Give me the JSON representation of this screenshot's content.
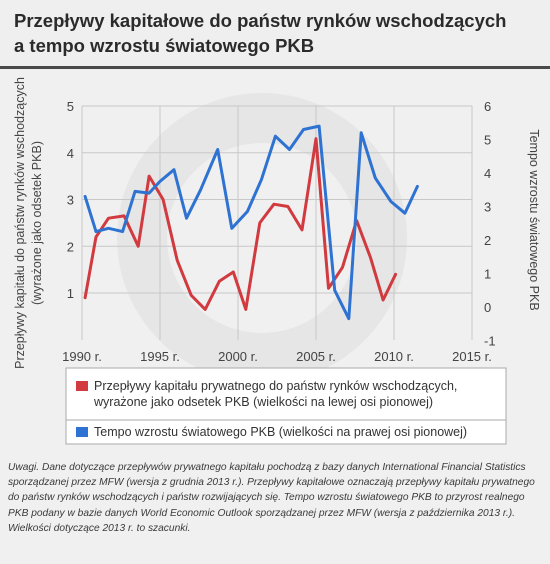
{
  "title_line1": "Przepływy kapitałowe do państw rynków wschodzących",
  "title_line2": "a tempo wzrostu światowego PKB",
  "notes": "Uwagi. Dane dotyczące przepływów prywatnego kapitału pochodzą z bazy danych International Financial Statistics sporządzanej przez MFW (wersja z grudnia 2013 r.). Przepływy kapitałowe oznaczają przepływy kapitału prywatnego do państw rynków wschodzących i państw rozwijających się. Tempo wzrostu światowego PKB to przyrost realnego PKB podany w bazie danych World Economic Outlook sporządzanej przez MFW (wersja z października 2013 r.). Wielkości dotyczące 2013 r. to szacunki.",
  "colors": {
    "private_flows": "#d13a3f",
    "gdp_growth": "#2e72d2",
    "grid": "#c8c8c8",
    "text": "#444444"
  },
  "chart_data": {
    "type": "line",
    "title": "Przepływy kapitałowe do państw rynków wschodzących a tempo wzrostu światowego PKB",
    "ylabel_left": "Przepływy kapitału do państw rynków wschodzących (wyrażone jako odsetek PKB)",
    "ylabel_right": "Tempo wzrostu światowego PKB",
    "x_ticks": [
      {
        "value": 1990,
        "label": "1990 r."
      },
      {
        "value": 1995,
        "label": "1995  r."
      },
      {
        "value": 2000,
        "label": "2000 r."
      },
      {
        "value": 2005,
        "label": "2005 r."
      },
      {
        "value": 2010,
        "label": "2010 r."
      },
      {
        "value": 2015,
        "label": "2015 r."
      }
    ],
    "xlim": [
      1990,
      2015
    ],
    "ylim_left": [
      0,
      5
    ],
    "yticks_left": [
      1,
      2,
      3,
      4,
      5
    ],
    "ylim_right": [
      -1,
      6
    ],
    "yticks_right": [
      -1,
      0,
      1,
      2,
      3,
      4,
      5,
      6
    ],
    "grid": true,
    "legend_position": "bottom",
    "series": [
      {
        "name": "Przepływy kapitału prywatnego do państw rynków wschodzących, wyrażone jako odsetek PKB (wielkości na lewej osi pionowej)",
        "axis": "left",
        "color": "#d13a3f",
        "points": [
          [
            1990.2,
            0.9
          ],
          [
            1990.9,
            2.2
          ],
          [
            1991.7,
            2.6
          ],
          [
            1992.7,
            2.65
          ],
          [
            1993.6,
            2.0
          ],
          [
            1994.3,
            3.5
          ],
          [
            1995.2,
            3.0
          ],
          [
            1996.1,
            1.7
          ],
          [
            1997.0,
            0.95
          ],
          [
            1997.9,
            0.65
          ],
          [
            1998.8,
            1.25
          ],
          [
            1999.7,
            1.45
          ],
          [
            2000.5,
            0.65
          ],
          [
            2001.4,
            2.5
          ],
          [
            2002.3,
            2.9
          ],
          [
            2003.2,
            2.85
          ],
          [
            2004.1,
            2.35
          ],
          [
            2005.0,
            4.3
          ],
          [
            2005.8,
            1.1
          ],
          [
            2006.7,
            1.55
          ],
          [
            2007.6,
            2.55
          ],
          [
            2008.5,
            1.75
          ],
          [
            2009.3,
            0.85
          ],
          [
            2010.1,
            1.4
          ]
        ]
      },
      {
        "name": "Tempo wzrostu światowego PKB (wielkości na prawej osi pionowej)",
        "axis": "right",
        "color": "#2e72d2",
        "points": [
          [
            1990.2,
            3.3
          ],
          [
            1990.9,
            2.25
          ],
          [
            1991.7,
            2.35
          ],
          [
            1992.6,
            2.25
          ],
          [
            1993.4,
            3.45
          ],
          [
            1994.3,
            3.4
          ],
          [
            1995.0,
            3.75
          ],
          [
            1995.9,
            4.1
          ],
          [
            1996.7,
            2.65
          ],
          [
            1997.6,
            3.5
          ],
          [
            1998.7,
            4.7
          ],
          [
            1999.6,
            2.35
          ],
          [
            2000.6,
            2.85
          ],
          [
            2001.5,
            3.8
          ],
          [
            2002.4,
            5.1
          ],
          [
            2003.3,
            4.7
          ],
          [
            2004.2,
            5.3
          ],
          [
            2005.2,
            5.4
          ],
          [
            2006.2,
            0.5
          ],
          [
            2007.1,
            -0.35
          ],
          [
            2007.9,
            5.2
          ],
          [
            2008.8,
            3.85
          ],
          [
            2009.8,
            3.15
          ],
          [
            2010.7,
            2.8
          ],
          [
            2011.5,
            3.6
          ]
        ]
      }
    ]
  }
}
